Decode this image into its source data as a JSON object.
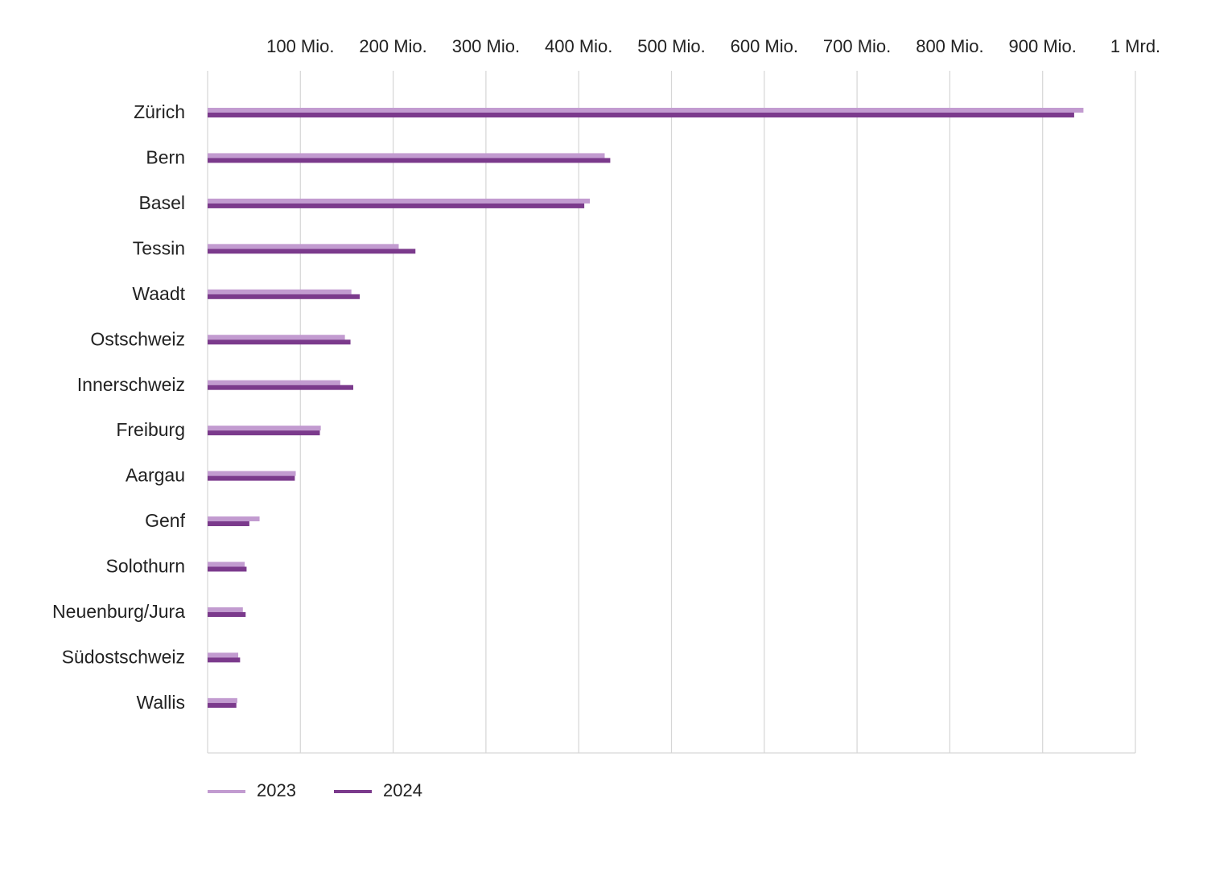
{
  "chart_data": {
    "type": "hbar",
    "categories": [
      "Zürich",
      "Bern",
      "Basel",
      "Tessin",
      "Waadt",
      "Ostschweiz",
      "Innerschweiz",
      "Freiburg",
      "Aargau",
      "Genf",
      "Solothurn",
      "Neuenburg/Jura",
      "Südostschweiz",
      "Wallis"
    ],
    "series": [
      {
        "name": "2023",
        "color": "#c29bd0",
        "values": [
          944,
          428,
          412,
          206,
          155,
          148,
          143,
          122,
          95,
          56,
          40,
          38,
          33,
          32
        ]
      },
      {
        "name": "2024",
        "color": "#7b3a8c",
        "values": [
          934,
          434,
          406,
          224,
          164,
          154,
          157,
          121,
          94,
          45,
          42,
          41,
          35,
          31
        ]
      }
    ],
    "xlim": [
      0,
      1000
    ],
    "xticks": [
      {
        "value": 100,
        "label": "100 Mio."
      },
      {
        "value": 200,
        "label": "200 Mio."
      },
      {
        "value": 300,
        "label": "300 Mio."
      },
      {
        "value": 400,
        "label": "400 Mio."
      },
      {
        "value": 500,
        "label": "500 Mio."
      },
      {
        "value": 600,
        "label": "600 Mio."
      },
      {
        "value": 700,
        "label": "700 Mio."
      },
      {
        "value": 800,
        "label": "800 Mio."
      },
      {
        "value": 900,
        "label": "900 Mio."
      },
      {
        "value": 1000,
        "label": "1 Mrd."
      }
    ],
    "grid": true,
    "legend": "bottom-left"
  }
}
